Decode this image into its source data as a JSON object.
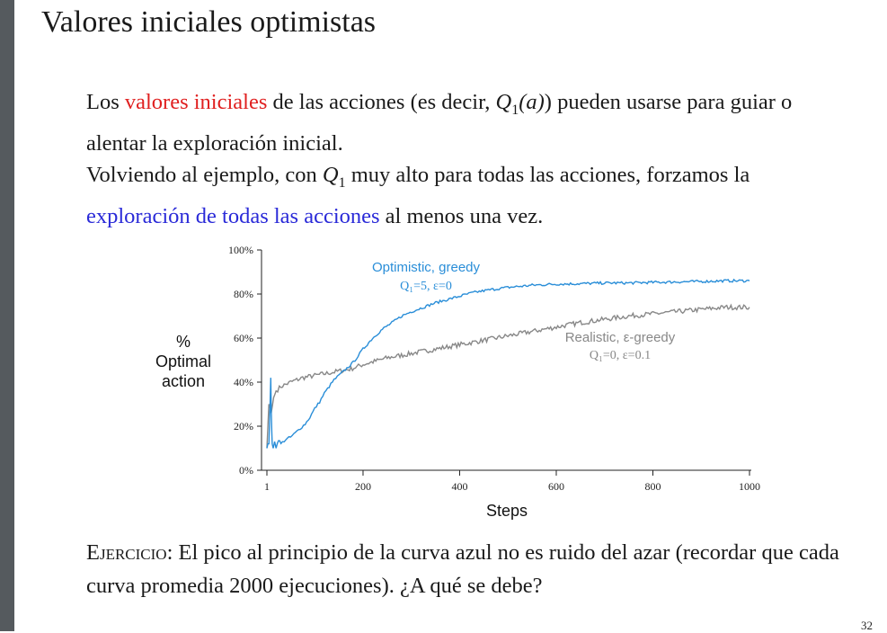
{
  "slide": {
    "title": "Valores iniciales optimistas",
    "page_number": "32"
  },
  "para1": {
    "a": "Los ",
    "highlight": "valores iniciales",
    "b": " de las acciones (es decir, ",
    "q": "Q",
    "q_sub": "1",
    "q_arg": "(a)",
    "c": ") pueden usarse para guiar o alentar la exploración inicial.",
    "highlight_color": "#e02020"
  },
  "para2": {
    "a": "Volviendo al ejemplo, con ",
    "q": "Q",
    "q_sub": "1",
    "b": " muy alto para todas las acciones, forzamos la ",
    "highlight": "exploración de todas las acciones",
    "c": " al menos una vez.",
    "highlight_color": "#2a2ad8"
  },
  "exercise": {
    "label": "Ejercicio:",
    "text": " El pico al principio de la curva azul no es ruido del azar (recordar que cada curva promedia 2000 ejecuciones). ¿A qué se debe?"
  },
  "chart_data": {
    "type": "line",
    "xlabel": "Steps",
    "ylabel_lines": [
      "%",
      "Optimal",
      "action"
    ],
    "xlim": [
      1,
      1000
    ],
    "ylim": [
      0,
      100
    ],
    "x_ticks": [
      {
        "value": 1,
        "label": "1"
      },
      {
        "value": 200,
        "label": "200"
      },
      {
        "value": 400,
        "label": "400"
      },
      {
        "value": 600,
        "label": "600"
      },
      {
        "value": 800,
        "label": "800"
      },
      {
        "value": 1000,
        "label": "1000"
      }
    ],
    "y_ticks": [
      {
        "value": 0,
        "label": "0%"
      },
      {
        "value": 20,
        "label": "20%"
      },
      {
        "value": 40,
        "label": "40%"
      },
      {
        "value": 60,
        "label": "60%"
      },
      {
        "value": 80,
        "label": "80%"
      },
      {
        "value": 100,
        "label": "100%"
      }
    ],
    "grid": false,
    "series": [
      {
        "name": "Optimistic, greedy",
        "params": "Q₁=5,  ε=0",
        "color": "#2a8ed8",
        "x": [
          1,
          3,
          5,
          7,
          9,
          10,
          11,
          12,
          14,
          17,
          20,
          25,
          30,
          40,
          50,
          60,
          70,
          80,
          90,
          100,
          110,
          120,
          130,
          140,
          150,
          160,
          170,
          180,
          190,
          200,
          220,
          240,
          260,
          280,
          300,
          325,
          350,
          375,
          400,
          425,
          450,
          475,
          500,
          550,
          600,
          650,
          700,
          750,
          800,
          850,
          900,
          950,
          1000
        ],
        "y": [
          10,
          12,
          12,
          25,
          42,
          28,
          18,
          12,
          10,
          13,
          10,
          14,
          12,
          14,
          15,
          17,
          19,
          21,
          24,
          28,
          31,
          35,
          38,
          41,
          43,
          45,
          47,
          49,
          52,
          55,
          60,
          64,
          67,
          70,
          72,
          74,
          76,
          77.5,
          79,
          80.5,
          81.5,
          82.3,
          83,
          84,
          84.5,
          84.7,
          85,
          85,
          85.3,
          85.5,
          85.7,
          86,
          86
        ]
      },
      {
        "name": "Realistic, ε-greedy",
        "params": "Q₁=0,  ε=0.1",
        "color": "#888888",
        "x": [
          1,
          3,
          5,
          8,
          10,
          15,
          20,
          30,
          40,
          50,
          75,
          100,
          125,
          150,
          175,
          200,
          250,
          300,
          350,
          400,
          450,
          500,
          550,
          600,
          650,
          700,
          750,
          800,
          850,
          900,
          950,
          1000
        ],
        "y": [
          10,
          20,
          30,
          28,
          26,
          33,
          36,
          38,
          39,
          40,
          42,
          43,
          44,
          45,
          46,
          48,
          51,
          53,
          55,
          57,
          59,
          61,
          63,
          65,
          67,
          68.5,
          70,
          71,
          72,
          73,
          74,
          74
        ]
      }
    ]
  }
}
